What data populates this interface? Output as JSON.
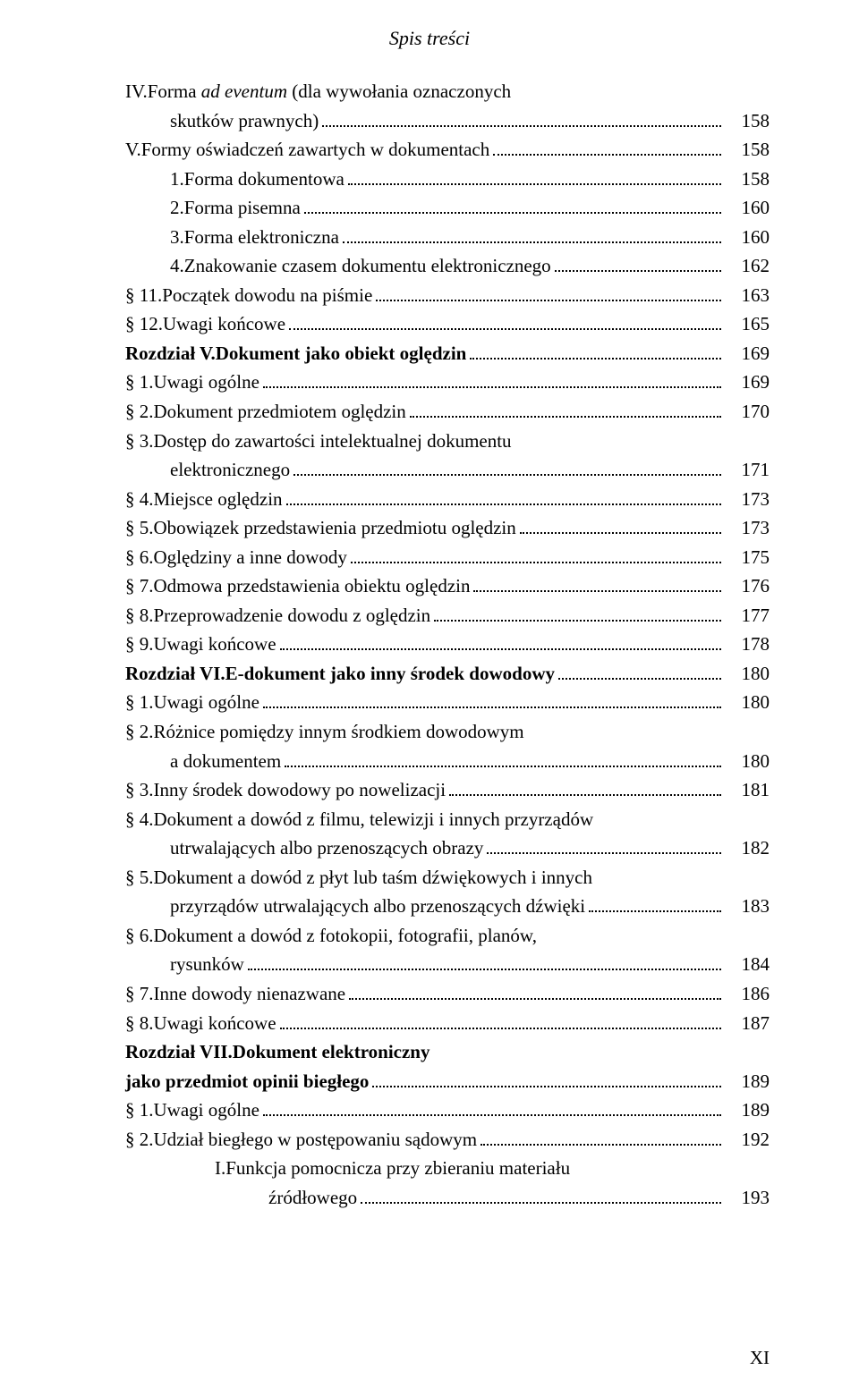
{
  "header": "Spis treści",
  "footer": "XI",
  "entries": [
    {
      "indent": 1,
      "label": "IV. ",
      "text": "Forma ",
      "textItalic": "ad eventum ",
      "textAfter": "(dla wywołania oznaczonych",
      "cont": "skutków prawnych)",
      "contIndent": 2,
      "page": "158"
    },
    {
      "indent": 1,
      "label": "V. ",
      "text": "Formy oświadczeń zawartych w dokumentach",
      "page": "158"
    },
    {
      "indent": 2,
      "label": "1. ",
      "text": "Forma dokumentowa",
      "page": "158"
    },
    {
      "indent": 2,
      "label": "2. ",
      "text": "Forma pisemna",
      "page": "160"
    },
    {
      "indent": 2,
      "label": "3. ",
      "text": "Forma elektroniczna",
      "page": "160"
    },
    {
      "indent": 2,
      "label": "4. ",
      "text": "Znakowanie czasem dokumentu elektronicznego",
      "page": "162"
    },
    {
      "indent": 0,
      "label": "§ 11. ",
      "text": "Początek dowodu na piśmie",
      "page": "163"
    },
    {
      "indent": 0,
      "label": "§ 12. ",
      "text": "Uwagi końcowe",
      "page": "165"
    },
    {
      "indent": 0,
      "chapter": true,
      "label": "Rozdział V. ",
      "text": "Dokument jako obiekt oględzin",
      "page": "169"
    },
    {
      "indent": 0,
      "label": "§ 1. ",
      "text": "Uwagi ogólne",
      "page": "169"
    },
    {
      "indent": 0,
      "label": "§ 2. ",
      "text": "Dokument przedmiotem oględzin",
      "page": "170"
    },
    {
      "indent": 0,
      "label": "§ 3. ",
      "text": "Dostęp do zawartości intelektualnej dokumentu",
      "cont": "elektronicznego",
      "contIndent": 2,
      "page": "171"
    },
    {
      "indent": 0,
      "label": "§ 4. ",
      "text": "Miejsce oględzin",
      "page": "173"
    },
    {
      "indent": 0,
      "label": "§ 5. ",
      "text": "Obowiązek przedstawienia przedmiotu oględzin",
      "page": "173"
    },
    {
      "indent": 0,
      "label": "§ 6. ",
      "text": "Oględziny a inne dowody",
      "page": "175"
    },
    {
      "indent": 0,
      "label": "§ 7. ",
      "text": "Odmowa przedstawienia obiektu oględzin",
      "page": "176"
    },
    {
      "indent": 0,
      "label": "§ 8. ",
      "text": "Przeprowadzenie dowodu z oględzin",
      "page": "177"
    },
    {
      "indent": 0,
      "label": "§ 9. ",
      "text": "Uwagi końcowe",
      "page": "178"
    },
    {
      "indent": 0,
      "chapter": true,
      "label": "Rozdział VI. ",
      "text": "E-dokument jako inny środek dowodowy",
      "page": "180"
    },
    {
      "indent": 0,
      "label": "§ 1. ",
      "text": "Uwagi ogólne",
      "page": "180"
    },
    {
      "indent": 0,
      "label": "§ 2. ",
      "text": "Różnice pomiędzy innym środkiem dowodowym",
      "cont": "a dokumentem",
      "contIndent": 2,
      "page": "180"
    },
    {
      "indent": 0,
      "label": "§ 3. ",
      "text": "Inny środek dowodowy po nowelizacji",
      "page": "181"
    },
    {
      "indent": 0,
      "label": "§ 4. ",
      "text": "Dokument a dowód z filmu, telewizji i innych przyrządów",
      "cont": "utrwalających albo przenoszących obrazy",
      "contIndent": 2,
      "page": "182"
    },
    {
      "indent": 0,
      "label": "§ 5. ",
      "text": "Dokument a dowód z płyt lub taśm dźwiękowych i innych",
      "cont": "przyrządów utrwalających albo przenoszących dźwięki",
      "contIndent": 2,
      "page": "183"
    },
    {
      "indent": 0,
      "label": "§ 6. ",
      "text": "Dokument a dowód z fotokopii, fotografii, planów,",
      "cont": "rysunków",
      "contIndent": 2,
      "page": "184"
    },
    {
      "indent": 0,
      "label": "§ 7. ",
      "text": "Inne dowody nienazwane",
      "page": "186"
    },
    {
      "indent": 0,
      "label": "§ 8. ",
      "text": "Uwagi końcowe",
      "page": "187"
    },
    {
      "indent": 0,
      "chapter": true,
      "label": "Rozdział VII. ",
      "text": "Dokument elektroniczny",
      "cont": "jako przedmiot opinii biegłego",
      "contIndent": 0,
      "contBold": true,
      "page": "189"
    },
    {
      "indent": 0,
      "label": "§ 1. ",
      "text": "Uwagi ogólne",
      "page": "189"
    },
    {
      "indent": 0,
      "label": "§ 2. ",
      "text": "Udział biegłego w postępowaniu sądowym",
      "page": "192"
    },
    {
      "indent": 3,
      "label": "I. ",
      "text": "Funkcja pomocnicza przy zbieraniu materiału",
      "cont": "źródłowego",
      "contIndent": 4,
      "page": "193"
    }
  ]
}
